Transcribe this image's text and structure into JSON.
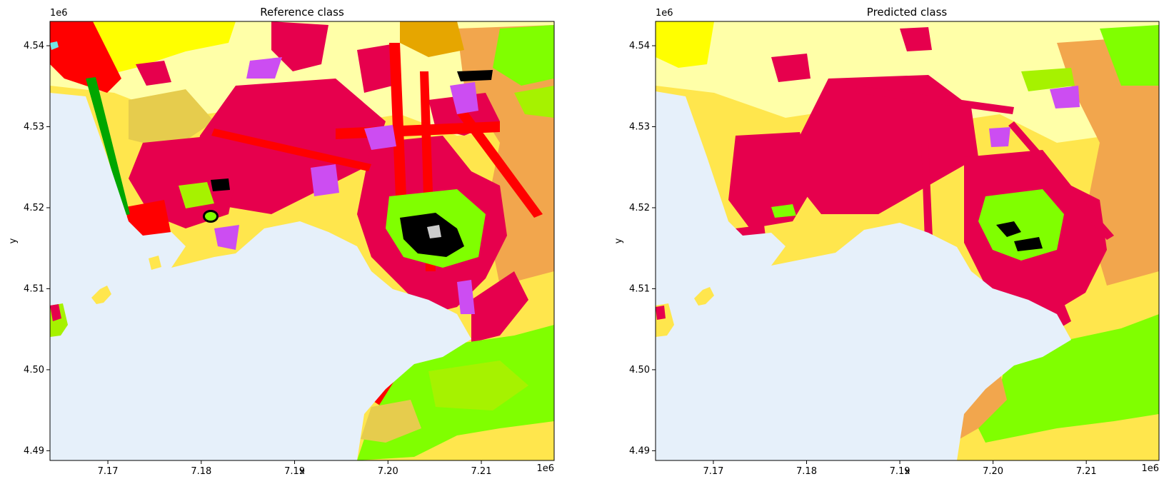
{
  "panels": [
    {
      "id": "reference",
      "title": "Reference class",
      "xlabel": "x",
      "ylabel": "y",
      "x_offset": "1e6",
      "y_offset": "1e6",
      "xlim": [
        7.1638,
        7.2178
      ],
      "ylim": [
        4.4888,
        4.543
      ],
      "xticks": [
        "7.17",
        "7.18",
        "7.19",
        "7.20",
        "7.21"
      ],
      "yticks": [
        "4.49",
        "4.50",
        "4.51",
        "4.52",
        "4.53",
        "4.54"
      ]
    },
    {
      "id": "predicted",
      "title": "Predicted class",
      "xlabel": "x",
      "ylabel": "y",
      "x_offset": "1e6",
      "y_offset": "1e6",
      "xlim": [
        7.1638,
        7.2178
      ],
      "ylim": [
        4.4888,
        4.543
      ],
      "xticks": [
        "7.17",
        "7.18",
        "7.19",
        "7.20",
        "7.21"
      ],
      "yticks": [
        "4.49",
        "4.50",
        "4.51",
        "4.52",
        "4.53",
        "4.54"
      ]
    }
  ],
  "class_colors": {
    "sea": "#e6f0fa",
    "urban_dense": "#e6004d",
    "urban_sparse": "#ff0000",
    "arable": "#ffff00",
    "pasture": "#ffffa8",
    "complex_cultivation": "#ffe64d",
    "agri_natural": "#e6cc4d",
    "heterogeneous_agri": "#f2a64d",
    "olive_vineyard": "#e6a600",
    "broadleaf_forest": "#80ff00",
    "shrub": "#a6f200",
    "natural_grass": "#ccf24d",
    "sport_leisure": "#ffa6ff",
    "industrial": "#cc4df2",
    "bare_rock": "#000000",
    "sparse_veg": "#cccccc",
    "beach": "#73e6e6",
    "conifer": "#00a600",
    "brown_soil": "#a65a00"
  }
}
